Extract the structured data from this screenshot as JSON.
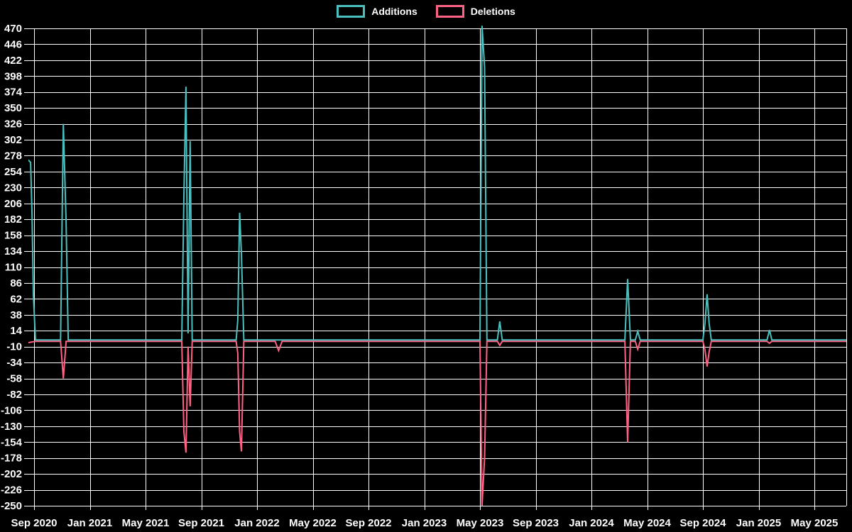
{
  "page": {
    "background": "#000000",
    "text_color": "#ffffff"
  },
  "chart_data": {
    "type": "line",
    "title": "",
    "xlabel": "",
    "ylabel": "",
    "background": "#000000",
    "grid": {
      "on": true,
      "color": "#ffffff"
    },
    "legend_position": "top-center",
    "x_axis": {
      "tick_labels": [
        "Sep 2020",
        "Jan 2021",
        "May 2021",
        "Sep 2021",
        "Jan 2022",
        "May 2022",
        "Sep 2022",
        "Jan 2023",
        "May 2023",
        "Sep 2023",
        "Jan 2024",
        "May 2024",
        "Sep 2024",
        "Jan 2025",
        "May 2025"
      ],
      "months_per_tick": 4,
      "unit": "months since Sep 2020"
    },
    "y_axis": {
      "ticks": [
        470,
        446,
        422,
        398,
        374,
        350,
        326,
        302,
        278,
        254,
        230,
        206,
        182,
        158,
        134,
        110,
        86,
        62,
        38,
        14,
        -10,
        -34,
        -58,
        -82,
        -106,
        -130,
        -154,
        -178,
        -202,
        -226,
        -250
      ],
      "min": -250,
      "max": 470
    },
    "series": [
      {
        "name": "Additions",
        "color": "#4bc0c0",
        "points": [
          [
            -0.45,
            272
          ],
          [
            -0.25,
            268
          ],
          [
            -0.15,
            190
          ],
          [
            -0.05,
            68
          ],
          [
            0.1,
            0
          ],
          [
            1.9,
            0
          ],
          [
            2.1,
            326
          ],
          [
            2.3,
            178
          ],
          [
            2.45,
            0
          ],
          [
            10.6,
            0
          ],
          [
            10.75,
            216
          ],
          [
            10.9,
            382
          ],
          [
            11.05,
            10
          ],
          [
            11.2,
            300
          ],
          [
            11.35,
            0
          ],
          [
            14.5,
            0
          ],
          [
            14.62,
            30
          ],
          [
            14.75,
            192
          ],
          [
            14.88,
            131
          ],
          [
            15.05,
            0
          ],
          [
            32.0,
            0
          ],
          [
            32.15,
            474
          ],
          [
            32.33,
            412
          ],
          [
            32.5,
            0
          ],
          [
            33.25,
            0
          ],
          [
            33.42,
            28
          ],
          [
            33.6,
            0
          ],
          [
            42.4,
            0
          ],
          [
            42.6,
            92
          ],
          [
            42.8,
            0
          ],
          [
            43.15,
            0
          ],
          [
            43.32,
            13
          ],
          [
            43.5,
            0
          ],
          [
            48.0,
            0
          ],
          [
            48.15,
            25
          ],
          [
            48.3,
            69
          ],
          [
            48.45,
            25
          ],
          [
            48.6,
            0
          ],
          [
            52.6,
            0
          ],
          [
            52.78,
            15
          ],
          [
            52.95,
            0
          ],
          [
            58.4,
            0
          ]
        ]
      },
      {
        "name": "Deletions",
        "color": "#ff6384",
        "points": [
          [
            -0.45,
            -4
          ],
          [
            0.1,
            -2
          ],
          [
            1.9,
            -2
          ],
          [
            2.1,
            -58
          ],
          [
            2.3,
            -2
          ],
          [
            10.6,
            -2
          ],
          [
            10.75,
            -138
          ],
          [
            10.9,
            -170
          ],
          [
            11.05,
            -10
          ],
          [
            11.2,
            -100
          ],
          [
            11.35,
            -2
          ],
          [
            14.5,
            -2
          ],
          [
            14.62,
            -20
          ],
          [
            14.75,
            -138
          ],
          [
            14.88,
            -168
          ],
          [
            15.05,
            -2
          ],
          [
            17.3,
            -2
          ],
          [
            17.55,
            -16
          ],
          [
            17.8,
            -2
          ],
          [
            32.0,
            -2
          ],
          [
            32.15,
            -250
          ],
          [
            32.33,
            -178
          ],
          [
            32.5,
            -2
          ],
          [
            33.25,
            -2
          ],
          [
            33.42,
            -8
          ],
          [
            33.6,
            -2
          ],
          [
            42.4,
            -2
          ],
          [
            42.6,
            -154
          ],
          [
            42.8,
            -2
          ],
          [
            43.15,
            -2
          ],
          [
            43.32,
            -14
          ],
          [
            43.5,
            -2
          ],
          [
            48.0,
            -2
          ],
          [
            48.15,
            -15
          ],
          [
            48.3,
            -40
          ],
          [
            48.45,
            -18
          ],
          [
            48.6,
            -2
          ],
          [
            52.6,
            -2
          ],
          [
            52.78,
            -5
          ],
          [
            52.95,
            -2
          ],
          [
            58.4,
            -2
          ]
        ]
      }
    ]
  }
}
